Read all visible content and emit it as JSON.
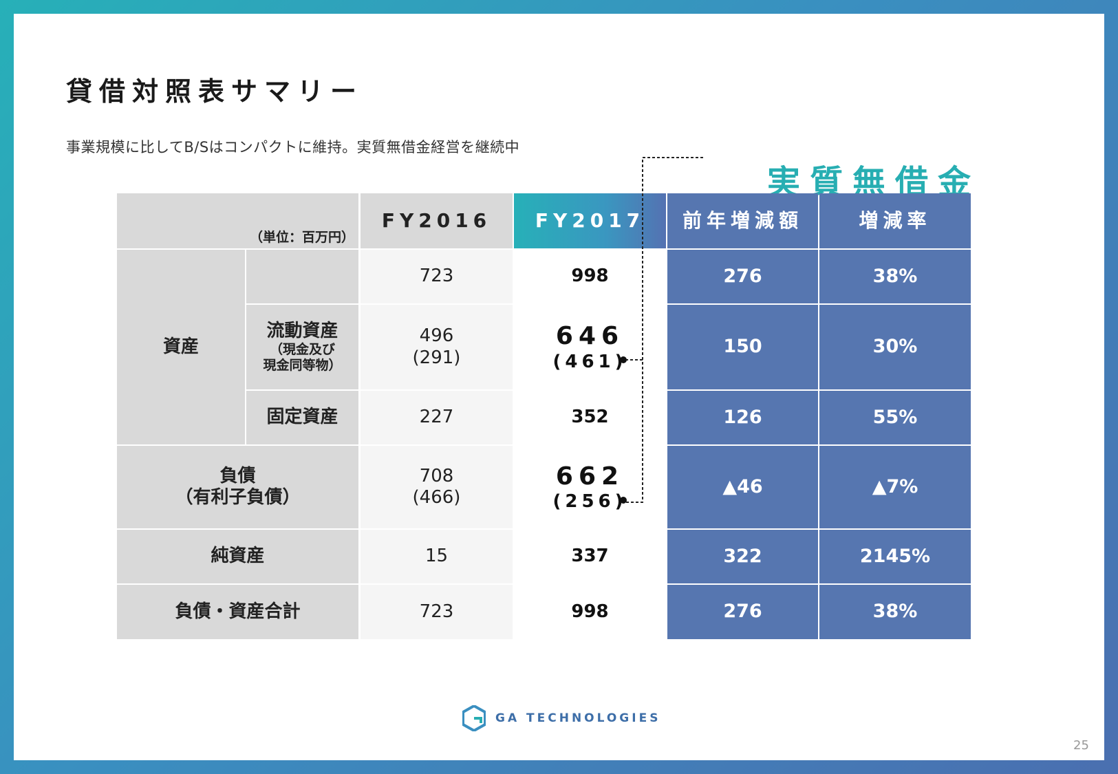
{
  "slide": {
    "title": "貸借対照表サマリー",
    "subtitle": "事業規模に比してB/Sはコンパクトに維持。実質無借金経営を継続中",
    "callout": "実質無借金",
    "page_number": "25",
    "logo_text": "GA TECHNOLOGIES"
  },
  "table": {
    "unit": "（単位：百万円）",
    "headers": [
      "FY2016",
      "FY2017",
      "前年増減額",
      "増減率"
    ],
    "assets_label": "資産",
    "rows": [
      {
        "label": "",
        "fy2016": "723",
        "fy2017": "998",
        "diff": "276",
        "rate": "38%"
      },
      {
        "label": "流動資産",
        "label_sub1": "（現金及び",
        "label_sub2": "現金同等物）",
        "fy2016": "496",
        "fy2016_sub": "(291)",
        "fy2017": "646",
        "fy2017_sub": "(461)",
        "diff": "150",
        "rate": "30%"
      },
      {
        "label": "固定資産",
        "fy2016": "227",
        "fy2017": "352",
        "diff": "126",
        "rate": "55%"
      },
      {
        "label": "負債",
        "label_sub1": "（有利子負債）",
        "fy2016": "708",
        "fy2016_sub": "(466)",
        "fy2017": "662",
        "fy2017_sub": "(256)",
        "diff": "▲46",
        "rate": "▲7%"
      },
      {
        "label": "純資産",
        "fy2016": "15",
        "fy2017": "337",
        "diff": "322",
        "rate": "2145%"
      },
      {
        "label": "負債・資産合計",
        "fy2016": "723",
        "fy2017": "998",
        "diff": "276",
        "rate": "38%"
      }
    ]
  },
  "colors": {
    "accent_teal": "#27aeb2",
    "table_blue": "#5676b0",
    "header_gray": "#d9d9d9"
  }
}
